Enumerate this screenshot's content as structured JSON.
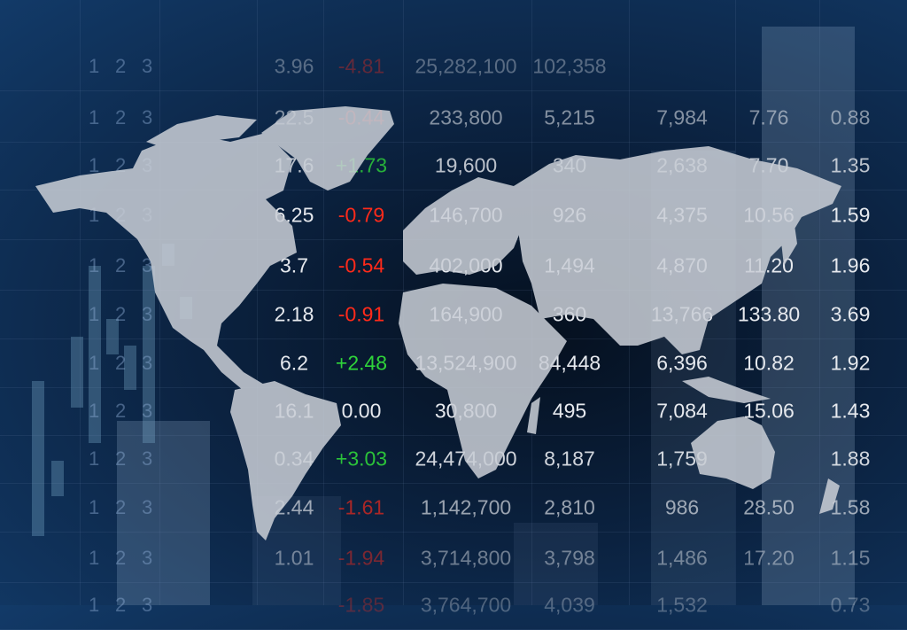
{
  "colors": {
    "positive": "#2fd43a",
    "negative": "#ff2a1a",
    "neutral": "#e6e9ee",
    "background": "#0b2240",
    "map": "#c9ced6"
  },
  "index_columns": [
    "1",
    "2",
    "3"
  ],
  "table_rows": [
    [
      "3.96",
      "-4.81",
      "25,282,100",
      "102,358",
      "",
      "",
      ""
    ],
    [
      "22.5",
      "-0.44",
      "233,800",
      "5,215",
      "7,984",
      "7.76",
      "0.88"
    ],
    [
      "17.6",
      "+1.73",
      "19,600",
      "340",
      "2,638",
      "7.70",
      "1.35"
    ],
    [
      "6.25",
      "-0.79",
      "146,700",
      "926",
      "4,375",
      "10.56",
      "1.59"
    ],
    [
      "3.7",
      "-0.54",
      "402,000",
      "1,494",
      "4,870",
      "11.20",
      "1.96"
    ],
    [
      "2.18",
      "-0.91",
      "164,900",
      "360",
      "13,766",
      "133.80",
      "3.69"
    ],
    [
      "6.2",
      "+2.48",
      "13,524,900",
      "84,448",
      "6,396",
      "10.82",
      "1.92"
    ],
    [
      "16.1",
      "0.00",
      "30,800",
      "495",
      "7,084",
      "15.06",
      "1.43"
    ],
    [
      "0.34",
      "+3.03",
      "24,474,000",
      "8,187",
      "1,759",
      "",
      "1.88"
    ],
    [
      "2.44",
      "-1.61",
      "1,142,700",
      "2,810",
      "986",
      "28.50",
      "1.58"
    ],
    [
      "1.01",
      "-1.94",
      "3,714,800",
      "3,798",
      "1,486",
      "17.20",
      "1.15"
    ],
    [
      "",
      "-1.85",
      "3,764,700",
      "4,039",
      "1,532",
      "",
      "0.73"
    ]
  ]
}
